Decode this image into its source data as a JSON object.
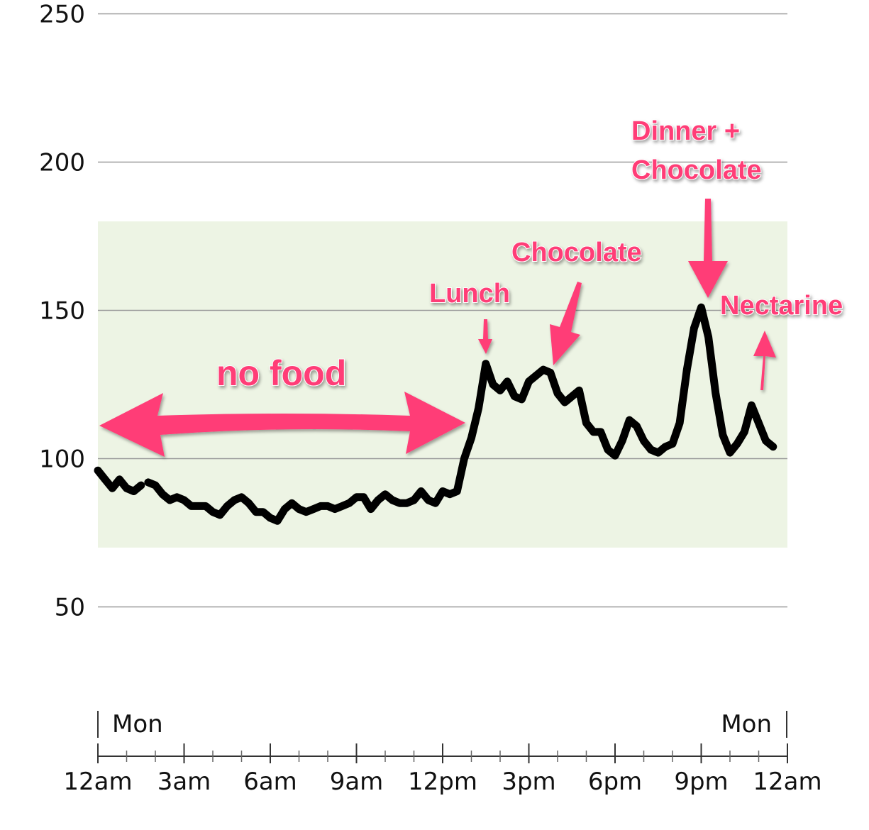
{
  "chart_data": {
    "type": "line",
    "x_unit": "hours",
    "y_ticks": [
      50,
      100,
      150,
      200,
      250
    ],
    "x_ticks": [
      {
        "x": 0,
        "label": "12am"
      },
      {
        "x": 3,
        "label": "3am"
      },
      {
        "x": 6,
        "label": "6am"
      },
      {
        "x": 9,
        "label": "9am"
      },
      {
        "x": 12,
        "label": "12pm"
      },
      {
        "x": 15,
        "label": "3pm"
      },
      {
        "x": 18,
        "label": "6pm"
      },
      {
        "x": 21,
        "label": "9pm"
      },
      {
        "x": 24,
        "label": "12am"
      }
    ],
    "day_labels": [
      {
        "x": 0,
        "label": "Mon"
      },
      {
        "x": 24,
        "label": "Mon"
      }
    ],
    "ylim": [
      0,
      250
    ],
    "xlim": [
      0,
      24
    ],
    "target_range": [
      70,
      180
    ],
    "range_color": "#edf4e4",
    "line_color": "#000000",
    "annotation_color": "#ff3d77",
    "grid": true,
    "series": [
      {
        "segments": [
          [
            [
              0,
              96
            ],
            [
              0.25,
              93
            ],
            [
              0.5,
              90
            ],
            [
              0.75,
              93
            ],
            [
              1.0,
              90
            ],
            [
              1.25,
              89
            ],
            [
              1.5,
              91
            ]
          ],
          [
            [
              1.75,
              92
            ],
            [
              2.0,
              91
            ],
            [
              2.25,
              88
            ],
            [
              2.5,
              86
            ],
            [
              2.75,
              87
            ],
            [
              3.0,
              86
            ],
            [
              3.25,
              84
            ],
            [
              3.5,
              84
            ],
            [
              3.75,
              84
            ],
            [
              4.0,
              82
            ],
            [
              4.25,
              81
            ],
            [
              4.5,
              84
            ],
            [
              4.75,
              86
            ],
            [
              5.0,
              87
            ],
            [
              5.25,
              85
            ],
            [
              5.5,
              82
            ],
            [
              5.75,
              82
            ],
            [
              6.0,
              80
            ],
            [
              6.25,
              79
            ],
            [
              6.5,
              83
            ],
            [
              6.75,
              85
            ],
            [
              7.0,
              83
            ],
            [
              7.25,
              82
            ],
            [
              7.5,
              83
            ],
            [
              7.75,
              84
            ],
            [
              8.0,
              84
            ],
            [
              8.25,
              83
            ],
            [
              8.5,
              84
            ],
            [
              8.75,
              85
            ],
            [
              9.0,
              87
            ],
            [
              9.25,
              87
            ],
            [
              9.5,
              83
            ],
            [
              9.75,
              86
            ],
            [
              10.0,
              88
            ],
            [
              10.25,
              86
            ],
            [
              10.5,
              85
            ],
            [
              10.75,
              85
            ],
            [
              11.0,
              86
            ],
            [
              11.25,
              89
            ],
            [
              11.5,
              86
            ],
            [
              11.75,
              85
            ],
            [
              12.0,
              89
            ],
            [
              12.25,
              88
            ],
            [
              12.5,
              89
            ],
            [
              12.75,
              100
            ],
            [
              13.0,
              107
            ],
            [
              13.25,
              117
            ],
            [
              13.5,
              132
            ],
            [
              13.75,
              125
            ],
            [
              14.0,
              123
            ],
            [
              14.25,
              126
            ],
            [
              14.5,
              121
            ],
            [
              14.75,
              120
            ],
            [
              15.0,
              126
            ],
            [
              15.25,
              128
            ],
            [
              15.5,
              130
            ],
            [
              15.75,
              129
            ],
            [
              16.0,
              122
            ],
            [
              16.25,
              119
            ],
            [
              16.5,
              121
            ],
            [
              16.75,
              123
            ],
            [
              17.0,
              112
            ],
            [
              17.25,
              109
            ],
            [
              17.5,
              109
            ],
            [
              17.75,
              103
            ],
            [
              18.0,
              101
            ],
            [
              18.25,
              106
            ],
            [
              18.5,
              113
            ],
            [
              18.75,
              111
            ],
            [
              19.0,
              106
            ],
            [
              19.25,
              103
            ],
            [
              19.5,
              102
            ],
            [
              19.75,
              104
            ],
            [
              20.0,
              105
            ],
            [
              20.25,
              112
            ],
            [
              20.5,
              130
            ],
            [
              20.75,
              144
            ],
            [
              21.0,
              151
            ],
            [
              21.25,
              141
            ],
            [
              21.5,
              122
            ],
            [
              21.75,
              108
            ],
            [
              22.0,
              102
            ],
            [
              22.25,
              105
            ],
            [
              22.5,
              109
            ],
            [
              22.75,
              118
            ],
            [
              23.0,
              112
            ],
            [
              23.25,
              106
            ],
            [
              23.5,
              104
            ]
          ]
        ]
      }
    ],
    "annotations": [
      {
        "text": "no food"
      },
      {
        "text": "Lunch"
      },
      {
        "text": "Chocolate"
      },
      {
        "text": "Dinner +"
      },
      {
        "text": "Chocolate"
      },
      {
        "text": "Nectarine"
      }
    ]
  }
}
